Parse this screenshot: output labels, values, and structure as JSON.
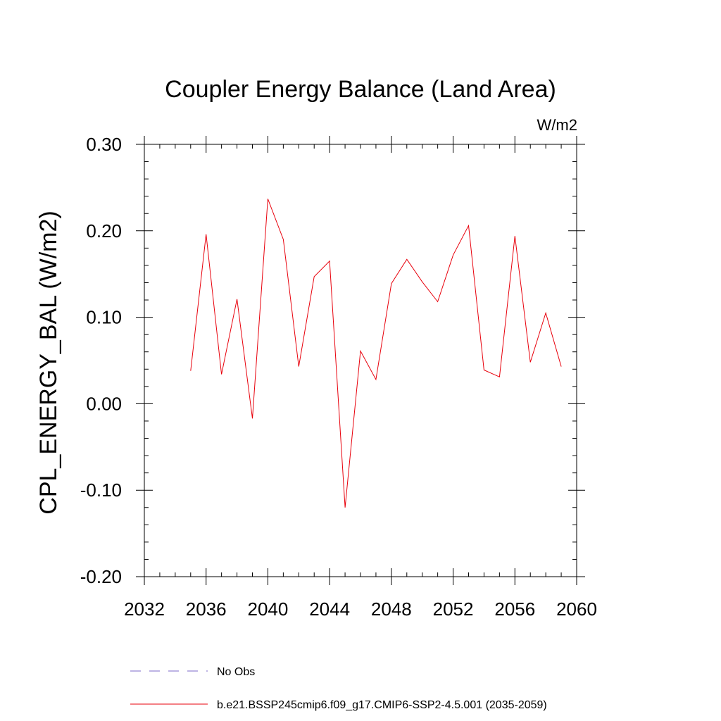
{
  "chart_data": {
    "type": "line",
    "title": "Coupler Energy Balance (Land Area)",
    "units_label": "W/m2",
    "ylabel": "CPL_ENERGY_BAL  (W/m2)",
    "xlabel": "",
    "xlim": [
      2032,
      2060
    ],
    "ylim": [
      -0.2,
      0.3
    ],
    "x_ticks": [
      2032,
      2036,
      2040,
      2044,
      2048,
      2052,
      2056,
      2060
    ],
    "x_tick_labels": [
      "2032",
      "2036",
      "2040",
      "2044",
      "2048",
      "2052",
      "2056",
      "2060"
    ],
    "y_ticks": [
      -0.2,
      -0.1,
      0.0,
      0.1,
      0.2,
      0.3
    ],
    "y_tick_labels": [
      "-0.20",
      "-0.10",
      "0.00",
      "0.10",
      "0.20",
      "0.30"
    ],
    "grid": false,
    "legend_position": "bottom",
    "series": [
      {
        "name": "b.e21.BSSP245cmip6.f09_g17.CMIP6-SSP2-4.5.001 (2035-2059)",
        "color": "#e8000b",
        "style": "solid",
        "x": [
          2035,
          2036,
          2037,
          2038,
          2039,
          2040,
          2041,
          2042,
          2043,
          2044,
          2045,
          2046,
          2047,
          2048,
          2049,
          2050,
          2051,
          2052,
          2053,
          2054,
          2055,
          2056,
          2057,
          2058,
          2059
        ],
        "y": [
          0.038,
          0.196,
          0.034,
          0.121,
          -0.017,
          0.237,
          0.19,
          0.043,
          0.147,
          0.165,
          -0.12,
          0.061,
          0.028,
          0.139,
          0.167,
          0.141,
          0.118,
          0.172,
          0.206,
          0.039,
          0.031,
          0.194,
          0.048,
          0.105,
          0.043
        ]
      }
    ],
    "legend": [
      {
        "label": "No Obs",
        "color": "#7b68c8",
        "style": "dashed"
      },
      {
        "label": "b.e21.BSSP245cmip6.f09_g17.CMIP6-SSP2-4.5.001 (2035-2059)",
        "color": "#e8000b",
        "style": "solid"
      }
    ]
  }
}
